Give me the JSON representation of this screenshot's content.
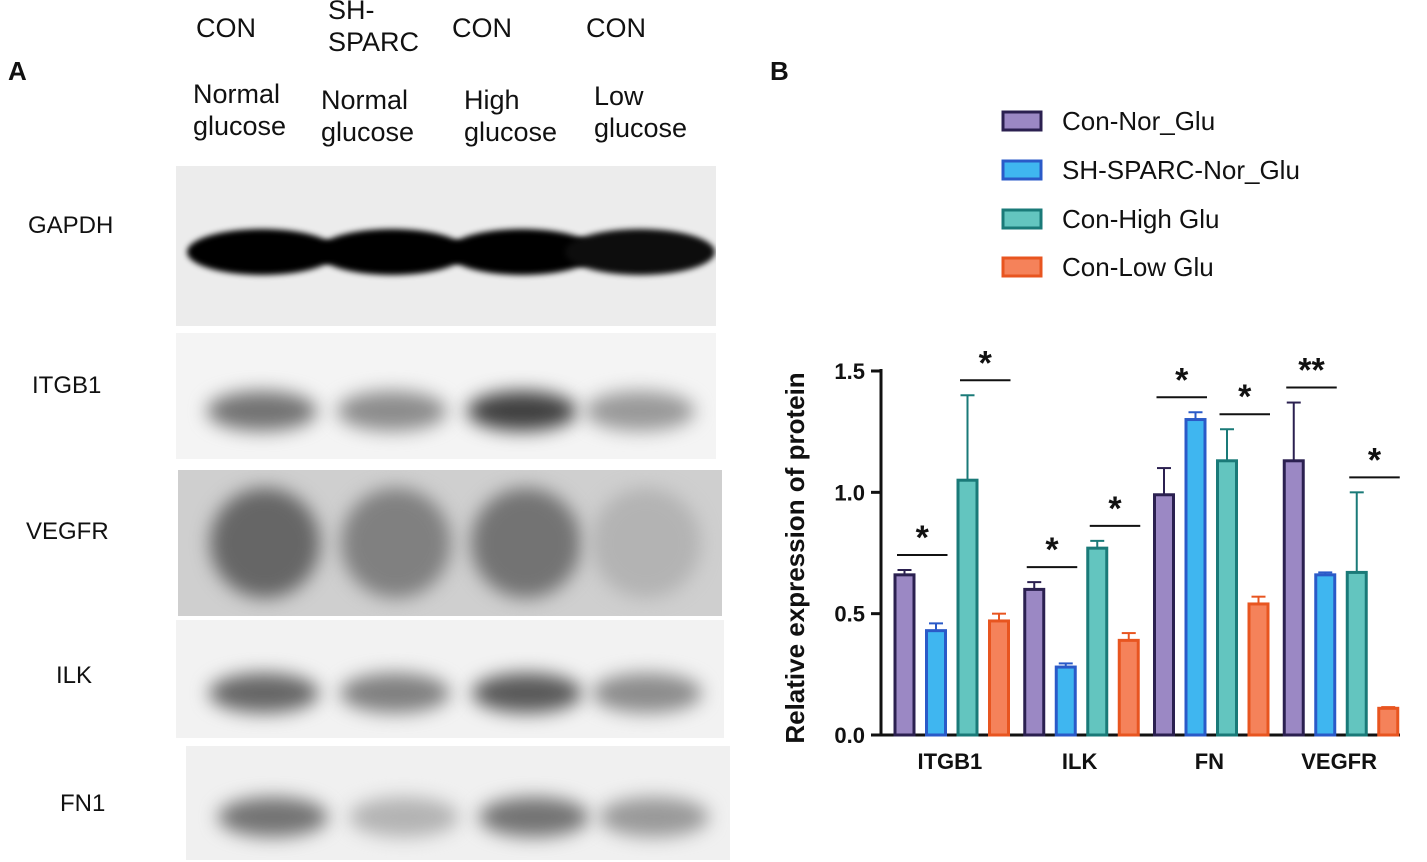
{
  "panels": {
    "a": "A",
    "b": "B"
  },
  "lanes": [
    {
      "group": "CON",
      "condition_line1": "Normal",
      "condition_line2": "glucose"
    },
    {
      "group_line1": "SH-",
      "group_line2": "SPARC",
      "condition_line1": "Normal",
      "condition_line2": "glucose"
    },
    {
      "group": "CON",
      "condition_line1": "High",
      "condition_line2": "glucose"
    },
    {
      "group": "CON",
      "condition_line1": "Low",
      "condition_line2": "glucose"
    }
  ],
  "blot_rows": [
    {
      "label": "GAPDH",
      "intensity": [
        1.0,
        1.0,
        1.0,
        0.95
      ]
    },
    {
      "label": "ITGB1",
      "intensity": [
        0.55,
        0.45,
        0.75,
        0.4
      ]
    },
    {
      "label": "VEGFR",
      "intensity": [
        0.6,
        0.5,
        0.55,
        0.3
      ]
    },
    {
      "label": "ILK",
      "intensity": [
        0.6,
        0.5,
        0.65,
        0.45
      ]
    },
    {
      "label": "FN1",
      "intensity": [
        0.55,
        0.3,
        0.55,
        0.4
      ]
    }
  ],
  "colors": {
    "Con-Nor_Glu": "#9b88c4",
    "SH-SPARC-Nor_Glu": "#3fb6f0",
    "Con-High Glu": "#63c5bf",
    "Con-Low Glu": "#f5825a",
    "edge_Con-Nor_Glu": "#2b2050",
    "edge_SH-SPARC-Nor_Glu": "#2a5ac8",
    "edge_Con-High Glu": "#1a7a78",
    "edge_Con-Low Glu": "#e85520"
  },
  "chart_data": {
    "type": "bar",
    "title": "",
    "xlabel": "",
    "ylabel": "Relative expression of protein",
    "ylim": [
      0,
      1.5
    ],
    "yticks": [
      "0.0",
      "0.5",
      "1.0",
      "1.5"
    ],
    "categories": [
      "ITGB1",
      "ILK",
      "FN",
      "VEGFR"
    ],
    "series": [
      {
        "name": "Con-Nor_Glu",
        "values": [
          0.66,
          0.6,
          0.99,
          1.13
        ],
        "errors": [
          0.02,
          0.03,
          0.11,
          0.24
        ]
      },
      {
        "name": "SH-SPARC-Nor_Glu",
        "values": [
          0.43,
          0.28,
          1.3,
          0.66
        ],
        "errors": [
          0.03,
          0.015,
          0.03,
          0.01
        ]
      },
      {
        "name": "Con-High Glu",
        "values": [
          1.05,
          0.77,
          1.13,
          0.67
        ],
        "errors": [
          0.35,
          0.03,
          0.13,
          0.33
        ]
      },
      {
        "name": "Con-Low Glu",
        "values": [
          0.47,
          0.39,
          0.54,
          0.11
        ],
        "errors": [
          0.03,
          0.03,
          0.03,
          0.005
        ]
      }
    ],
    "significance": [
      {
        "category": "ITGB1",
        "pair": [
          0,
          1
        ],
        "label": "*"
      },
      {
        "category": "ITGB1",
        "pair": [
          2,
          3
        ],
        "label": "*"
      },
      {
        "category": "ILK",
        "pair": [
          0,
          1
        ],
        "label": "*"
      },
      {
        "category": "ILK",
        "pair": [
          2,
          3
        ],
        "label": "*"
      },
      {
        "category": "FN",
        "pair": [
          0,
          1
        ],
        "label": "*"
      },
      {
        "category": "FN",
        "pair": [
          2,
          3
        ],
        "label": "*"
      },
      {
        "category": "VEGFR",
        "pair": [
          0,
          1
        ],
        "label": "**"
      },
      {
        "category": "VEGFR",
        "pair": [
          2,
          3
        ],
        "label": "*"
      }
    ],
    "legend_position": "top"
  }
}
